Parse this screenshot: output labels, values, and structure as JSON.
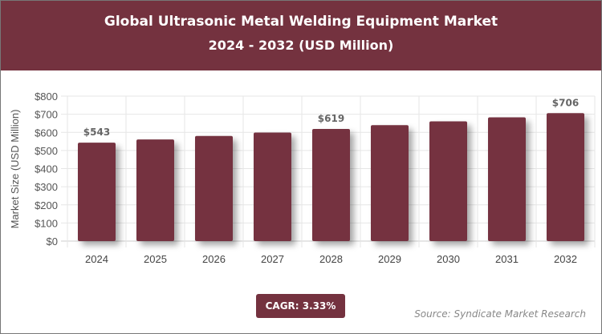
{
  "header": {
    "title": "Global Ultrasonic Metal Welding Equipment Market",
    "subtitle": "2024 - 2032 (USD Million)"
  },
  "footer": {
    "cagr": "CAGR: 3.33%",
    "source": "Source: Syndicate Market Research"
  },
  "chart_data": {
    "type": "bar",
    "title": "Global Ultrasonic Metal Welding Equipment Market",
    "subtitle": "2024 - 2032 (USD Million)",
    "xlabel": "",
    "ylabel": "Market Size (USD Million)",
    "categories": [
      "2024",
      "2025",
      "2026",
      "2027",
      "2028",
      "2029",
      "2030",
      "2031",
      "2032"
    ],
    "values": [
      543,
      561,
      580,
      599,
      619,
      640,
      661,
      683,
      706
    ],
    "data_labels": {
      "2024": "$543",
      "2028": "$619",
      "2032": "$706"
    },
    "ylim": [
      0,
      800
    ],
    "yticks": [
      "$0",
      "$100",
      "$200",
      "$300",
      "$400",
      "$500",
      "$600",
      "$700",
      "$800"
    ],
    "grid": true,
    "bar_color": "#74323f",
    "header_color": "#74323f"
  }
}
